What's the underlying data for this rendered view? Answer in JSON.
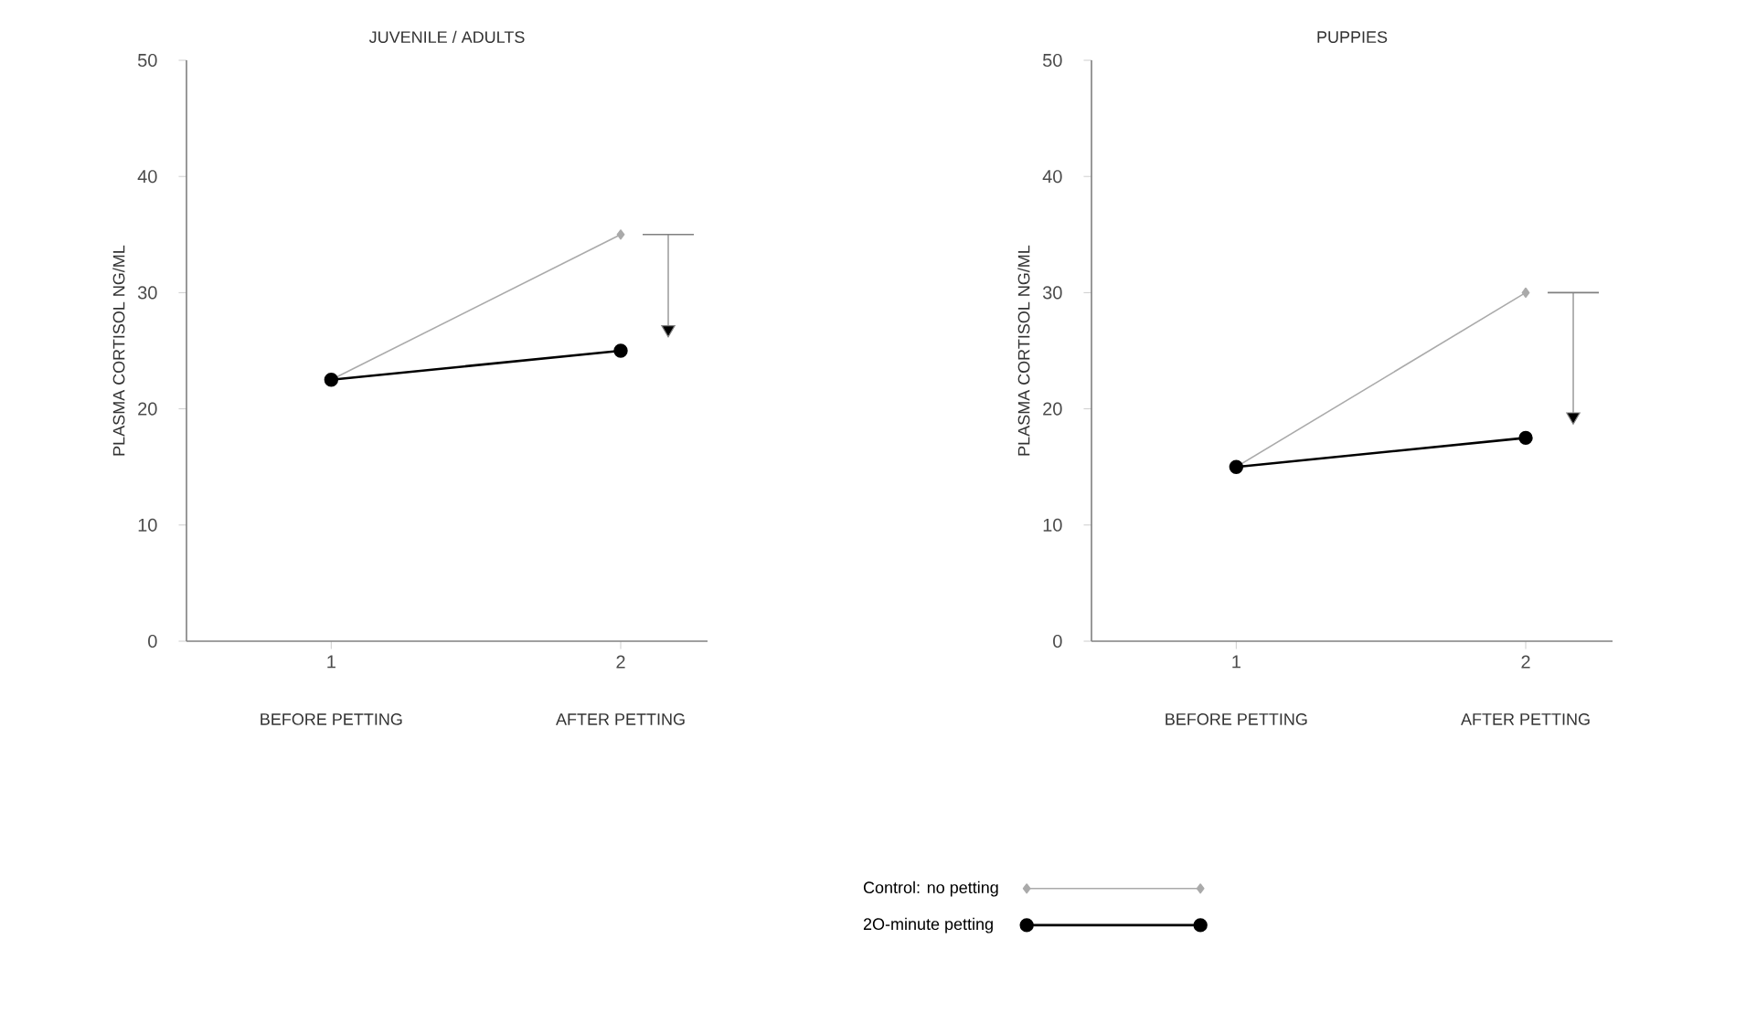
{
  "chart_data": [
    {
      "type": "line",
      "title": "JUVENILE / ADULTS",
      "ylabel": "PLASMA CORTISOL NG/ML",
      "categories": [
        "1",
        "2"
      ],
      "ylim": [
        0,
        50
      ],
      "yticks": [
        0,
        10,
        20,
        30,
        40,
        50
      ],
      "annotations": [
        "BEFORE PETTING",
        "AFTER PETTING"
      ],
      "series": [
        {
          "name": "Control: no petting",
          "color": "#aaaaaa",
          "marker": "diamond",
          "values": [
            22.5,
            35
          ]
        },
        {
          "name": "2O-minute petting",
          "color": "#000000",
          "marker": "circle",
          "values": [
            22.5,
            25
          ]
        }
      ],
      "legend": "bottom"
    },
    {
      "type": "line",
      "title": "PUPPIES",
      "ylabel": "PLASMA CORTISOL NG/ML",
      "categories": [
        "1",
        "2"
      ],
      "ylim": [
        0,
        50
      ],
      "yticks": [
        0,
        10,
        20,
        30,
        40,
        50
      ],
      "annotations": [
        "BEFORE PETTING",
        "AFTER PETTING"
      ],
      "series": [
        {
          "color": "#aaaaaa",
          "marker": "diamond",
          "values": [
            15,
            30
          ]
        },
        {
          "color": "#000000",
          "marker": "circle",
          "values": [
            15,
            17.5
          ]
        }
      ]
    }
  ]
}
